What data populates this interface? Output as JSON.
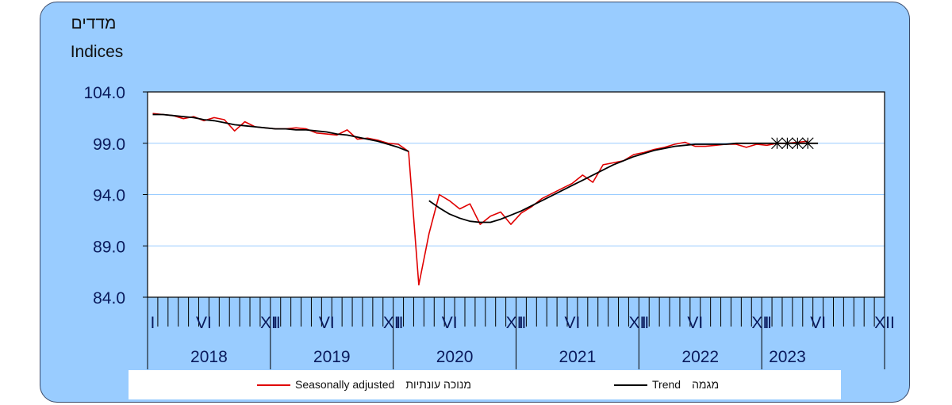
{
  "chart_data": {
    "type": "line",
    "ylabel_he": "מדדים",
    "ylabel_en": "Indices",
    "ylim": [
      84.0,
      104.0
    ],
    "yticks": [
      "104.0",
      "99.0",
      "94.0",
      "89.0",
      "84.0"
    ],
    "month_labels": [
      "I",
      "VI",
      "XII"
    ],
    "years": [
      "2018",
      "2019",
      "2020",
      "2021",
      "2022",
      "2023"
    ],
    "series": [
      {
        "name": "Seasonally adjusted",
        "name_he": "מנוכה עונתיות",
        "color": "#e00000",
        "start": "2018-01",
        "values": [
          101.9,
          101.8,
          101.7,
          101.4,
          101.6,
          101.2,
          101.5,
          101.3,
          100.2,
          101.1,
          100.6,
          100.5,
          100.4,
          100.4,
          100.5,
          100.4,
          100.0,
          99.9,
          99.8,
          100.3,
          99.4,
          99.5,
          99.3,
          99.0,
          98.9,
          98.2,
          85.2,
          90.2,
          94.0,
          93.4,
          92.6,
          93.1,
          91.1,
          91.9,
          92.3,
          91.1,
          92.2,
          92.8,
          93.6,
          94.1,
          94.6,
          95.1,
          95.9,
          95.2,
          96.9,
          97.1,
          97.3,
          97.9,
          98.1,
          98.4,
          98.6,
          98.9,
          99.1,
          98.7,
          98.7,
          98.8,
          98.9,
          98.9,
          98.6,
          98.9,
          98.8,
          99.0,
          99.0,
          99.1,
          99.2
        ]
      },
      {
        "name": "Trend",
        "name_he": "מגמה",
        "color": "#000000",
        "segments": [
          {
            "start": "2018-01",
            "values": [
              101.8,
              101.8,
              101.7,
              101.6,
              101.5,
              101.3,
              101.2,
              101.0,
              100.8,
              100.7,
              100.6,
              100.5,
              100.4,
              100.4,
              100.3,
              100.3,
              100.2,
              100.1,
              99.9,
              99.8,
              99.6,
              99.4,
              99.2,
              98.9,
              98.6,
              98.2
            ]
          },
          {
            "start": "2020-04",
            "values": [
              93.4,
              92.7,
              92.1,
              91.7,
              91.4,
              91.3,
              91.3,
              91.6,
              92.0,
              92.4,
              92.9,
              93.4,
              93.9,
              94.4,
              94.9,
              95.4,
              95.9,
              96.4,
              96.9,
              97.3,
              97.7,
              98.0,
              98.3,
              98.5,
              98.7,
              98.8,
              98.9,
              98.9,
              98.9,
              98.9,
              99.0,
              99.0,
              99.0,
              99.0,
              99.0,
              99.0,
              99.0,
              99.0,
              99.0
            ]
          }
        ],
        "provisional_months": [
          "2023-02",
          "2023-03",
          "2023-04",
          "2023-05"
        ]
      }
    ],
    "grid": true
  },
  "colors": {
    "background": "#99ccff",
    "plot_area": "#ffffff",
    "gridline": "#99ccff",
    "axis_text": "#0a1a5c"
  }
}
